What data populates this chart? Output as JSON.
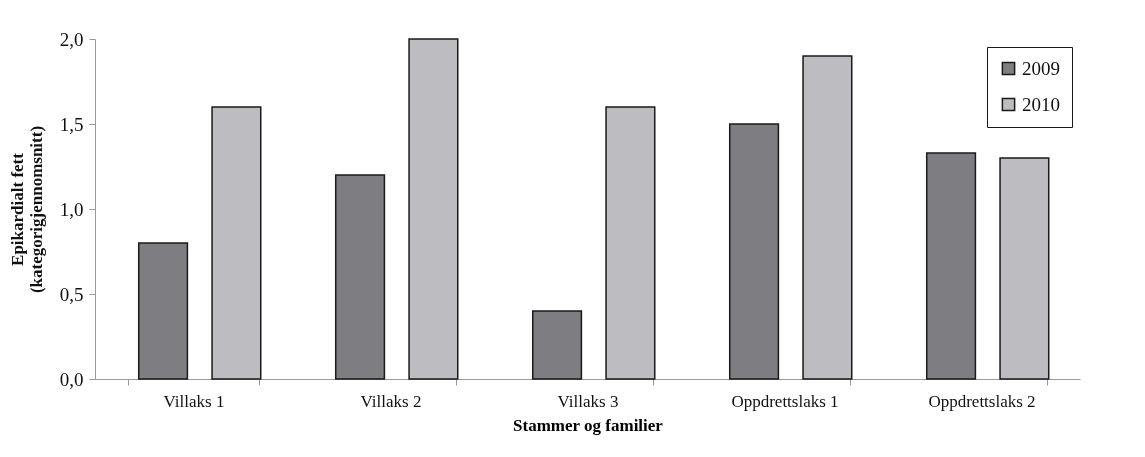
{
  "chart_data": {
    "type": "bar",
    "xlabel": "Stammer og familier",
    "ylabel": "Epikardialt fett\n(kategorigjennomsnitt)",
    "categories": [
      "Villaks 1",
      "Villaks 2",
      "Villaks 3",
      "Oppdrettslaks 1",
      "Oppdrettslaks 2"
    ],
    "series": [
      {
        "name": "2009",
        "color": "#7e7e82",
        "values": [
          0.8,
          1.2,
          0.4,
          1.5,
          1.33
        ]
      },
      {
        "name": "2010",
        "color": "#bdbdc1",
        "values": [
          1.6,
          2.0,
          1.6,
          1.9,
          1.3
        ]
      }
    ],
    "ylim": [
      0,
      2
    ],
    "yticks": [
      {
        "value": 0,
        "label": "0,0"
      },
      {
        "value": 0.5,
        "label": "0,5"
      },
      {
        "value": 1,
        "label": "1,0"
      },
      {
        "value": 1.5,
        "label": "1,5"
      },
      {
        "value": 2,
        "label": "2,0"
      }
    ],
    "grid": false,
    "legend": "top right"
  }
}
